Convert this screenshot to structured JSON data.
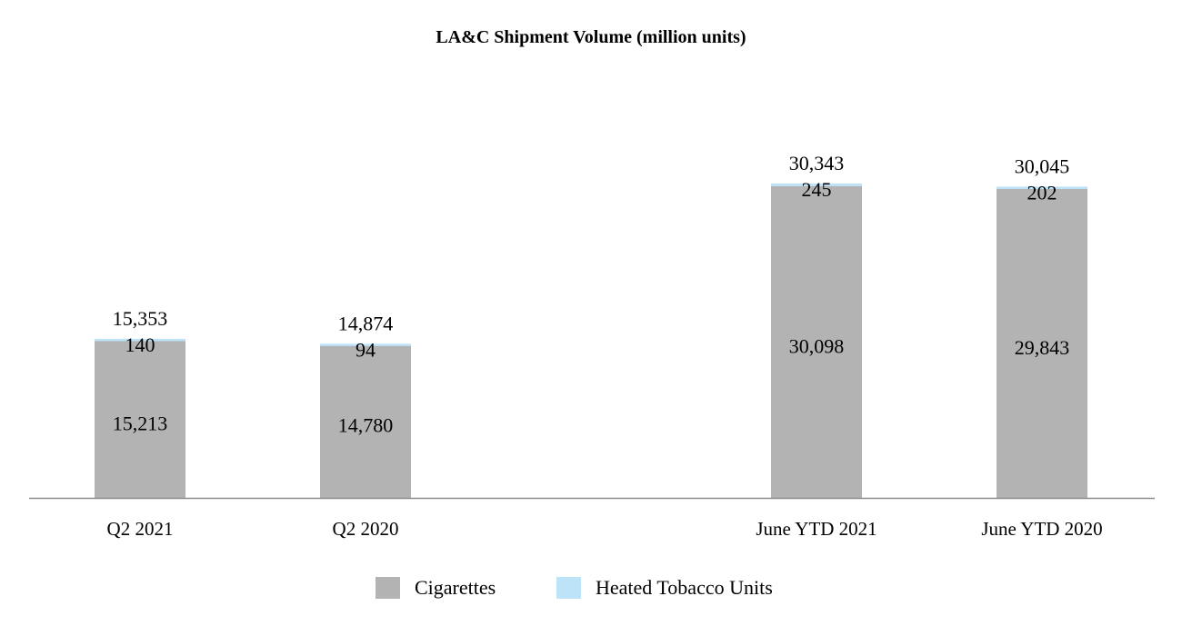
{
  "chart_data": {
    "type": "bar",
    "stacked": true,
    "title": "LA&C Shipment Volume (million units)",
    "xlabel": "",
    "ylabel": "",
    "categories": [
      "Q2 2021",
      "Q2 2020",
      "June YTD 2021",
      "June YTD 2020"
    ],
    "series": [
      {
        "name": "Cigarettes",
        "color": "#b3b3b3",
        "values": [
          15213,
          14780,
          30098,
          29843
        ],
        "labels": [
          "15,213",
          "14,780",
          "30,098",
          "29,843"
        ]
      },
      {
        "name": "Heated Tobacco Units",
        "color": "#bde3f8",
        "values": [
          140,
          94,
          245,
          202
        ],
        "labels": [
          "140",
          "94",
          "245",
          "202"
        ]
      }
    ],
    "totals": [
      15353,
      14874,
      30343,
      30045
    ],
    "total_labels": [
      "15,353",
      "14,874",
      "30,343",
      "30,045"
    ],
    "grid": false,
    "y_axis_visible": false,
    "legend_position": "bottom"
  }
}
